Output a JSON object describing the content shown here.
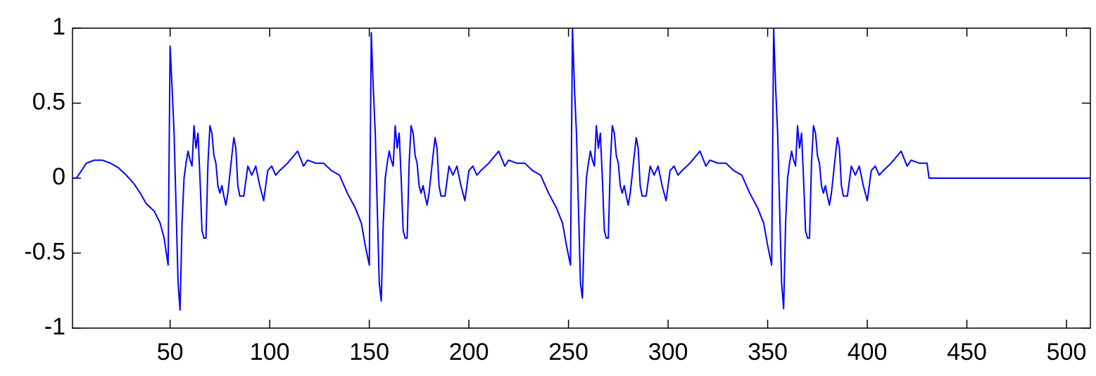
{
  "chart_data": {
    "type": "line",
    "color": "#0000ff",
    "xlim": [
      1,
      512
    ],
    "xticks": [
      50,
      100,
      150,
      200,
      250,
      300,
      350,
      400,
      450,
      500
    ],
    "ylim": [
      -1,
      1
    ],
    "yticks": [
      -1,
      -0.5,
      0,
      0.5,
      1
    ],
    "grid": false,
    "x": [
      1,
      3,
      5,
      8,
      12,
      16,
      20,
      24,
      28,
      32,
      35,
      38,
      42,
      45,
      47,
      49,
      50,
      51,
      52,
      53,
      54,
      55,
      56,
      57,
      58,
      59,
      60,
      61,
      62,
      63,
      64,
      65,
      66,
      67,
      68,
      69,
      70,
      71,
      72,
      73,
      74,
      75,
      76,
      77,
      78,
      79,
      81,
      82,
      83,
      84,
      85,
      87,
      89,
      91,
      93,
      95,
      97,
      99,
      101,
      103,
      105,
      109,
      114,
      117,
      119,
      123,
      127,
      131,
      135,
      139,
      143,
      146,
      148,
      150,
      151,
      152,
      153,
      154,
      155,
      156,
      157,
      158,
      159,
      160,
      161,
      162,
      163,
      164,
      165,
      166,
      167,
      168,
      169,
      170,
      171,
      172,
      173,
      174,
      175,
      176,
      177,
      178,
      179,
      180,
      182,
      183,
      184,
      185,
      186,
      188,
      190,
      192,
      194,
      196,
      198,
      200,
      202,
      204,
      206,
      210,
      215,
      218,
      220,
      224,
      228,
      232,
      236,
      240,
      244,
      247,
      249,
      251,
      252,
      253,
      254,
      255,
      256,
      257,
      258,
      259,
      260,
      261,
      262,
      263,
      264,
      265,
      266,
      267,
      268,
      269,
      270,
      271,
      272,
      273,
      274,
      275,
      276,
      277,
      278,
      279,
      280,
      281,
      283,
      284,
      285,
      286,
      287,
      289,
      291,
      293,
      295,
      297,
      299,
      301,
      303,
      305,
      307,
      311,
      316,
      319,
      321,
      325,
      329,
      333,
      337,
      341,
      345,
      348,
      350,
      352,
      353,
      354,
      355,
      356,
      357,
      358,
      359,
      360,
      361,
      362,
      363,
      364,
      365,
      366,
      367,
      368,
      369,
      370,
      371,
      372,
      373,
      374,
      375,
      376,
      377,
      378,
      379,
      380,
      381,
      382,
      384,
      385,
      386,
      387,
      388,
      390,
      392,
      394,
      396,
      398,
      400,
      402,
      404,
      406,
      408,
      412,
      417,
      420,
      422,
      426,
      430,
      431,
      512
    ],
    "values": [
      0,
      0,
      0.04,
      0.1,
      0.12,
      0.12,
      0.1,
      0.07,
      0.02,
      -0.04,
      -0.1,
      -0.17,
      -0.22,
      -0.3,
      -0.4,
      -0.58,
      0.88,
      0.6,
      0.3,
      -0.2,
      -0.7,
      -0.88,
      -0.3,
      0,
      0.1,
      0.18,
      0.12,
      0.08,
      0.35,
      0.2,
      0.3,
      0,
      -0.35,
      -0.4,
      -0.4,
      0.1,
      0.35,
      0.3,
      0.15,
      0.1,
      -0.05,
      -0.1,
      -0.05,
      -0.12,
      -0.18,
      -0.1,
      0.15,
      0.27,
      0.2,
      -0.05,
      -0.12,
      -0.12,
      0.08,
      0.02,
      0.08,
      -0.05,
      -0.15,
      0.05,
      0.08,
      0.02,
      0.05,
      0.1,
      0.18,
      0.08,
      0.12,
      0.1,
      0.1,
      0.05,
      0.02,
      -0.1,
      -0.2,
      -0.3,
      -0.45,
      -0.58,
      0.97,
      0.6,
      0.3,
      -0.2,
      -0.7,
      -0.82,
      -0.3,
      0,
      0.1,
      0.18,
      0.12,
      0.08,
      0.35,
      0.2,
      0.3,
      0,
      -0.35,
      -0.4,
      -0.4,
      0.1,
      0.35,
      0.3,
      0.15,
      0.1,
      -0.05,
      -0.1,
      -0.05,
      -0.12,
      -0.18,
      -0.1,
      0.15,
      0.27,
      0.2,
      -0.05,
      -0.12,
      -0.12,
      0.08,
      0.02,
      0.08,
      -0.05,
      -0.15,
      0.05,
      0.08,
      0.02,
      0.05,
      0.1,
      0.18,
      0.08,
      0.12,
      0.1,
      0.1,
      0.05,
      0.02,
      -0.1,
      -0.2,
      -0.3,
      -0.45,
      -0.58,
      1,
      0.6,
      0.3,
      -0.2,
      -0.7,
      -0.8,
      -0.3,
      0,
      0.1,
      0.18,
      0.12,
      0.08,
      0.35,
      0.2,
      0.3,
      0,
      -0.35,
      -0.4,
      -0.4,
      0.1,
      0.35,
      0.3,
      0.15,
      0.1,
      -0.05,
      -0.1,
      -0.05,
      -0.12,
      -0.18,
      -0.1,
      0.15,
      0.27,
      0.2,
      -0.05,
      -0.12,
      -0.12,
      0.08,
      0.02,
      0.08,
      -0.05,
      -0.15,
      0.05,
      0.08,
      0.02,
      0.05,
      0.1,
      0.18,
      0.08,
      0.12,
      0.1,
      0.1,
      0.05,
      0.02,
      -0.1,
      -0.2,
      -0.3,
      -0.45,
      -0.58,
      1,
      0.6,
      0.3,
      -0.2,
      -0.7,
      -0.87,
      -0.3,
      0,
      0.1,
      0.18,
      0.12,
      0.08,
      0.35,
      0.2,
      0.3,
      0,
      -0.35,
      -0.4,
      -0.4,
      0.1,
      0.35,
      0.3,
      0.15,
      0.1,
      -0.05,
      -0.1,
      -0.05,
      -0.12,
      -0.18,
      -0.1,
      0.15,
      0.27,
      0.2,
      -0.05,
      -0.12,
      -0.12,
      0.08,
      0.02,
      0.08,
      -0.05,
      -0.15,
      0.05,
      0.08,
      0.02,
      0.05,
      0.1,
      0.18,
      0.08,
      0.12,
      0.1,
      0.1,
      0,
      0
    ]
  }
}
